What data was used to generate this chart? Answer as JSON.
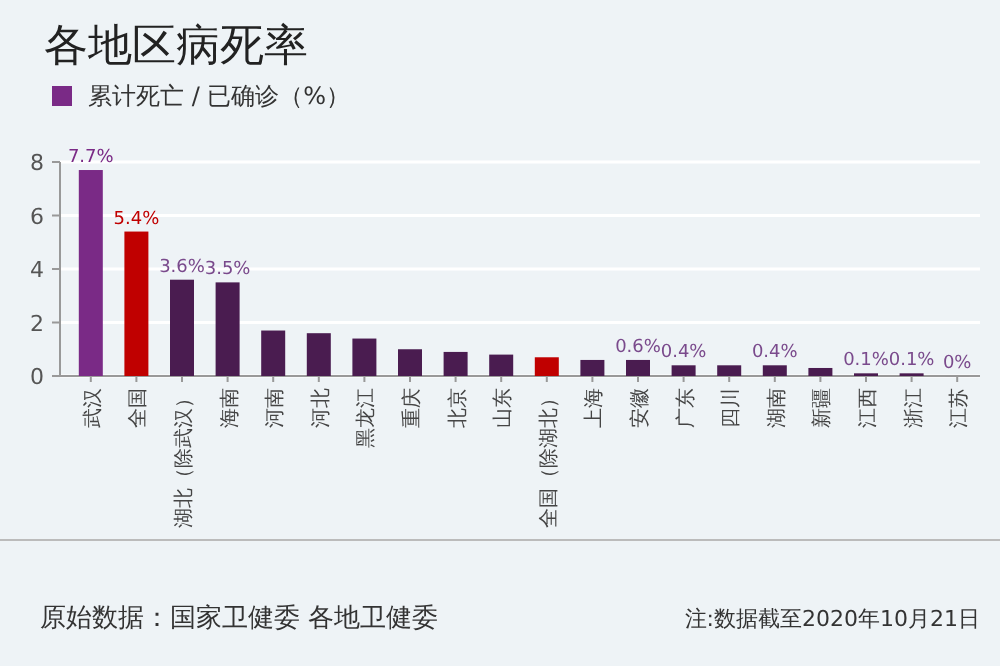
{
  "chart_data": {
    "type": "bar",
    "title": "各地区病死率",
    "categories": [
      "武汉",
      "全国",
      "湖北（除武汉）",
      "海南",
      "河南",
      "河北",
      "黑龙江",
      "重庆",
      "北京",
      "山东",
      "全国（除湖北）",
      "上海",
      "安徽",
      "广东",
      "四川",
      "湖南",
      "新疆",
      "江西",
      "浙江",
      "江苏"
    ],
    "series": [
      {
        "name": "累计死亡 / 已确诊（%）",
        "values": [
          7.7,
          5.4,
          3.6,
          3.5,
          1.7,
          1.6,
          1.4,
          1.0,
          0.9,
          0.8,
          0.7,
          0.6,
          0.6,
          0.4,
          0.4,
          0.4,
          0.3,
          0.1,
          0.1,
          0
        ],
        "colors": [
          "#7a2a86",
          "#c00000",
          "#4a1c50",
          "#4a1c50",
          "#4a1c50",
          "#4a1c50",
          "#4a1c50",
          "#4a1c50",
          "#4a1c50",
          "#4a1c50",
          "#c00000",
          "#4a1c50",
          "#4a1c50",
          "#4a1c50",
          "#4a1c50",
          "#4a1c50",
          "#4a1c50",
          "#4a1c50",
          "#4a1c50",
          "#4a1c50"
        ],
        "value_labels": [
          "7.7%",
          "5.4%",
          "3.6%",
          "3.5%",
          null,
          null,
          null,
          null,
          null,
          null,
          null,
          null,
          "0.6%",
          "0.4%",
          null,
          "0.4%",
          null,
          "0.1%",
          "0.1%",
          "0%"
        ]
      }
    ],
    "ylim": [
      0,
      8
    ],
    "yticks": [
      0,
      2,
      4,
      6,
      8
    ],
    "grid": "y",
    "legend": "top left",
    "annotations": [
      "原始数据：国家卫健委 各地卫健委",
      "注:数据截至2020年10月21日"
    ]
  }
}
